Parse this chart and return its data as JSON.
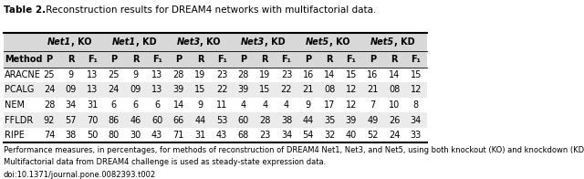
{
  "title_bold": "Table 2.",
  "title_rest": " Reconstruction results for DREAM4 networks with multifactorial data.",
  "col_groups": [
    "Net1, KO",
    "Net1, KD",
    "Net3, KO",
    "Net3, KD",
    "Net5, KO",
    "Net5, KD"
  ],
  "sub_headers": [
    "P",
    "R",
    "F₁"
  ],
  "method_header": "Method",
  "methods": [
    "ARACNE",
    "PCALG",
    "NEM",
    "FFLDR",
    "RIPE"
  ],
  "data": [
    [
      25,
      9,
      13,
      25,
      9,
      13,
      28,
      19,
      23,
      28,
      19,
      23,
      16,
      14,
      15,
      16,
      14,
      15
    ],
    [
      24,
      "09",
      13,
      24,
      "09",
      13,
      39,
      15,
      22,
      39,
      15,
      22,
      21,
      "08",
      12,
      21,
      "08",
      12
    ],
    [
      28,
      34,
      31,
      6,
      6,
      6,
      14,
      9,
      11,
      4,
      4,
      4,
      9,
      17,
      12,
      7,
      10,
      8
    ],
    [
      92,
      57,
      70,
      86,
      46,
      60,
      66,
      44,
      53,
      60,
      28,
      38,
      44,
      35,
      39,
      49,
      26,
      34
    ],
    [
      74,
      38,
      50,
      80,
      30,
      43,
      71,
      31,
      43,
      68,
      23,
      34,
      54,
      32,
      40,
      52,
      24,
      33
    ]
  ],
  "footer_line1": "Performance measures, in percentages, for methods of reconstruction of DREAM4 Net1, Net3, and Net5, using both knockout (KO) and knockdown (KD) data.",
  "footer_line2": "Multifactorial data from DREAM4 challenge is used as steady-state expression data.",
  "footer_line3": "doi:10.1371/journal.pone.0082393.t002",
  "bg_color": "#ffffff",
  "shade_dark": "#d8d8d8",
  "shade_light": "#ebebeb",
  "title_fontsize": 7.5,
  "data_fontsize": 7.0,
  "footer_fontsize": 6.0
}
